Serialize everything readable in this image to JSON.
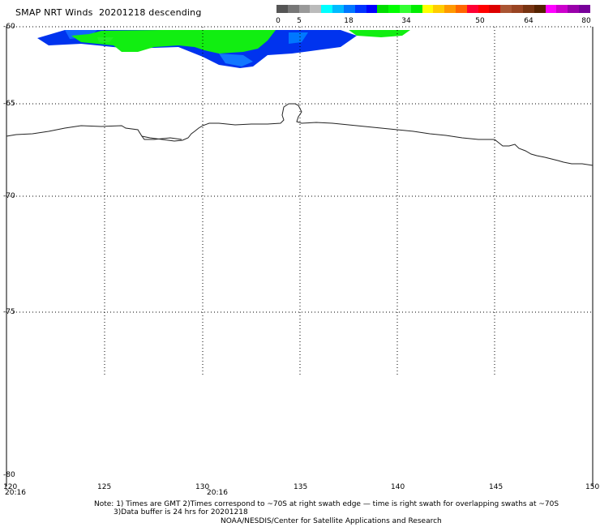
{
  "header": {
    "title": "SMAP NRT Winds  20201218 descending"
  },
  "colorbar": {
    "name": "wind-speed-color-scale",
    "segments": [
      {
        "color": "#555555"
      },
      {
        "color": "#777777"
      },
      {
        "color": "#999999"
      },
      {
        "color": "#bbbbbb"
      },
      {
        "color": "#00ffff"
      },
      {
        "color": "#00bbff"
      },
      {
        "color": "#0077ff"
      },
      {
        "color": "#0033ff"
      },
      {
        "color": "#0000ff"
      },
      {
        "color": "#00dd00"
      },
      {
        "color": "#00ff00"
      },
      {
        "color": "#33ff33"
      },
      {
        "color": "#00ee00"
      },
      {
        "color": "#ffff00"
      },
      {
        "color": "#ffcc00"
      },
      {
        "color": "#ff9900"
      },
      {
        "color": "#ff6600"
      },
      {
        "color": "#ff0033"
      },
      {
        "color": "#ff0000"
      },
      {
        "color": "#dd0000"
      },
      {
        "color": "#aa5533"
      },
      {
        "color": "#994422"
      },
      {
        "color": "#773311"
      },
      {
        "color": "#552200"
      },
      {
        "color": "#ff00ff"
      },
      {
        "color": "#cc00cc"
      },
      {
        "color": "#9900aa"
      },
      {
        "color": "#770099"
      }
    ],
    "ticks": [
      "0",
      "5",
      "18",
      "34",
      "50",
      "64",
      "80"
    ]
  },
  "map": {
    "latitudes": [
      "-60",
      "-65",
      "-70",
      "-75",
      "-80"
    ],
    "longitudes": [
      "120",
      "125",
      "130",
      "135",
      "140",
      "145",
      "150"
    ],
    "time_labels": [
      "20:16",
      "20:16"
    ]
  },
  "notes": {
    "line1": "Note: 1) Times are GMT 2)Times correspond to ~70S at right swath edge — time is right swath for overlapping swaths at ~70S",
    "line2": "3)Data buffer is 24 hrs for 20201218",
    "line3": "NOAA/NESDIS/Center for Satellite Applications and Research"
  }
}
